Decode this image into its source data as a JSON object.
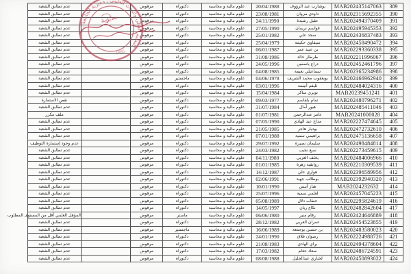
{
  "table": {
    "rows": [
      {
        "no": "389",
        "registration_id": "MAB202435147063",
        "full_name": "بوشارب عبد الرؤوف",
        "birth_date": "20/04/1988",
        "specialty": "علوم مالية و محاسبة",
        "degree": "دكتوراه",
        "decision": "مرفوض",
        "rejection_reason": "عدم تطابق الشعبة"
      },
      {
        "no": "390",
        "registration_id": "MAB202315692355",
        "full_name": "داودي مروان",
        "birth_date": "23/08/1981",
        "specialty": "علوم مالية و محاسبة",
        "degree": "دكتوراه",
        "decision": "مرفوض",
        "rejection_reason": "عدم تطابق الشعبة"
      },
      {
        "no": "391",
        "registration_id": "MAB202494370409",
        "full_name": "عقيل رشيدة",
        "birth_date": "24/11/1990",
        "specialty": "علوم مالية و محاسبة",
        "degree": "دكتوراه",
        "decision": "مرفوض",
        "rejection_reason": "عدم تطابق الشعبة"
      },
      {
        "no": "392",
        "registration_id": "MAB202495945353",
        "full_name": "قواسم نريمان",
        "birth_date": "27/05/1990",
        "specialty": "علوم مالية و محاسبة",
        "degree": "دكتوراه",
        "decision": "مرفوض",
        "rejection_reason": "عدم تطابق الشعبة"
      },
      {
        "no": "393",
        "registration_id": "MAB202436837483",
        "full_name": "سجد علي",
        "birth_date": "25/01/1982",
        "specialty": "علوم مالية و محاسبة",
        "degree": "دكتوراه",
        "decision": "مرفوض",
        "rejection_reason": "عدم تطابق الشعبة"
      },
      {
        "no": "394",
        "registration_id": "MAB202458490472",
        "full_name": "سيفاوي حكيمة",
        "birth_date": "25/04/1979",
        "specialty": "علوم مالية و محاسبة",
        "degree": "دكتوراه",
        "decision": "مرفوض",
        "rejection_reason": "عدم تطابق الشعبة"
      },
      {
        "no": "395",
        "registration_id": "MAB202293360338",
        "full_name": "بن عبيد عمر",
        "birth_date": "06/01/1987",
        "specialty": "علوم مالية و محاسبة",
        "degree": "دكتوراه",
        "decision": "مرفوض",
        "rejection_reason": "عدم تطابق الشعبة"
      },
      {
        "no": "396",
        "registration_id": "MAB202211996067",
        "full_name": "طرطار خالد",
        "birth_date": "31/08/1986",
        "specialty": "علوم مالية و محاسبة",
        "degree": "دكتوراه",
        "decision": "مرفوض",
        "rejection_reason": "عدم تطابق الشعبة"
      },
      {
        "no": "397",
        "registration_id": "MAB202452461796",
        "full_name": "دراع ياسمين",
        "birth_date": "24/05/1996",
        "specialty": "علوم مالية و محاسبة",
        "degree": "دكتوراه",
        "decision": "مرفوض",
        "rejection_reason": "عدم تطابق الشعبة"
      },
      {
        "no": "398",
        "registration_id": "MAB202365234986",
        "full_name": "سماعيلي نعيمة",
        "birth_date": "04/08/1985",
        "specialty": "علوم مالية و محاسبة",
        "degree": "دكتوراه",
        "decision": "مرفوض",
        "rejection_reason": "عدم تطابق الشعبة"
      },
      {
        "no": "399",
        "registration_id": "MAB202466962940",
        "full_name": "بويعقوب محمد الشريف",
        "birth_date": "04/06/1978",
        "specialty": "علوم مالية و محاسبة",
        "degree": "ماجستير",
        "decision": "مرفوض",
        "rejection_reason": "عدم تطابق الشعبة"
      },
      {
        "no": "400",
        "registration_id": "MAB202484024316",
        "full_name": "ثليفم أنيسة",
        "birth_date": "03/01/1996",
        "specialty": "علوم مالية و محاسبة",
        "degree": "دكتوراه",
        "decision": "مرفوض",
        "rejection_reason": "عدم تطابق الشعبة"
      },
      {
        "no": "401",
        "registration_id": "MAB20239451241",
        "full_name": "نويري ساكر",
        "birth_date": "15/04/1984",
        "specialty": "علوم مالية و محاسبة",
        "degree": "دكتوراه",
        "decision": "مرفوض",
        "rejection_reason": "عدم تطابق الشعبة"
      },
      {
        "no": "402",
        "registration_id": "MAB202480796271",
        "full_name": "تمام بلقاسم",
        "birth_date": "09/03/1977",
        "specialty": "علوم مالية و محاسبة",
        "degree": "دكتوراه",
        "decision": "مرفوض",
        "rejection_reason": "نقص الاستمارة"
      },
      {
        "no": "403",
        "registration_id": "MAB202485411046",
        "full_name": "هيور آمال",
        "birth_date": "31/07/1984",
        "specialty": "علوم مالية و محاسبة",
        "degree": "دكتوراه",
        "decision": "مرفوض",
        "rejection_reason": "عدم تطابق الشعبة"
      },
      {
        "no": "404",
        "registration_id": "MAB20241000028",
        "full_name": "عامر عبدالرحمن",
        "birth_date": "01/07/1981",
        "specialty": "علوم مالية و محاسبة",
        "degree": "دكتوراه",
        "decision": "مرفوض",
        "rejection_reason": "ملف مكرر"
      },
      {
        "no": "405",
        "registration_id": "MAB202227474645",
        "full_name": "مداح عبد الهادي",
        "birth_date": "07/05/1990",
        "specialty": "علوم مالية و محاسبة",
        "degree": "دكتوراه",
        "decision": "مرفوض",
        "rejection_reason": "عدم تطابق الشعبة"
      },
      {
        "no": "406",
        "registration_id": "MAB202472732610",
        "full_name": "بوديار هاجر",
        "birth_date": "21/05/1985",
        "specialty": "علوم مالية و محاسبة",
        "degree": "دكتوراه",
        "decision": "مرفوض",
        "rejection_reason": "عدم تطابق الشعبة"
      },
      {
        "no": "407",
        "registration_id": "MAB202475136658",
        "full_name": "براهيمي سمية",
        "birth_date": "07/01/1988",
        "specialty": "علوم مالية و محاسبة",
        "degree": "دكتوراه",
        "decision": "مرفوض",
        "rejection_reason": "عدم تطابق الشعبة"
      },
      {
        "no": "408",
        "registration_id": "MAB202498484814",
        "full_name": "سليمان نصيرة",
        "birth_date": "29/07/1992",
        "specialty": "علوم مالية و محاسبة",
        "degree": "دكتوراه",
        "decision": "مرفوض",
        "rejection_reason": "عدم وجود إستمارة التوظيف"
      },
      {
        "no": "409",
        "registration_id": "MAB202273459615",
        "full_name": "سبع نجيب",
        "birth_date": "24/03/1982",
        "specialty": "علوم مالية و محاسبة",
        "degree": "دكتوراه",
        "decision": "مرفوض",
        "rejection_reason": "عدم تطابق الشعبة"
      },
      {
        "no": "410",
        "registration_id": "MAB202484006966",
        "full_name": "يخلف العربي",
        "birth_date": "04/11/1980",
        "specialty": "علوم مالية و محاسبة",
        "degree": "دكتوراه",
        "decision": "مرفوض",
        "rejection_reason": "عدم تطابق الشعبة"
      },
      {
        "no": "411",
        "registration_id": "MAB202210309539",
        "full_name": "روابقية زهرة",
        "birth_date": "01/01/1985",
        "specialty": "علوم مالية و محاسبة",
        "degree": "دكتوراه",
        "decision": "مرفوض",
        "rejection_reason": "عدم تطابق الشعبة"
      },
      {
        "no": "412",
        "registration_id": "MAB202396589956",
        "full_name": "هواري علي",
        "birth_date": "14/12/1987",
        "specialty": "علوم مالية و محاسبة",
        "degree": "دكتوراه",
        "decision": "مرفوض",
        "rejection_reason": "عدم تطابق الشعبة"
      },
      {
        "no": "413",
        "registration_id": "MAB202392940320",
        "full_name": "بوطالب جهيد",
        "birth_date": "02/06/1991",
        "specialty": "علوم مالية و محاسبة",
        "degree": "دكتوراه",
        "decision": "مرفوض",
        "rejection_reason": "عدم تطابق الشعبة"
      },
      {
        "no": "414",
        "registration_id": "MAB2024232632",
        "full_name": "هباز أنيس",
        "birth_date": "10/01/1990",
        "specialty": "علوم مالية و محاسبة",
        "degree": "دكتوراه",
        "decision": "مرفوض",
        "rejection_reason": "عدم تطابق الشعبة"
      },
      {
        "no": "415",
        "registration_id": "MAB202457045223",
        "full_name": "لعلمي سمية",
        "birth_date": "25/07/1996",
        "specialty": "علوم مالية و محاسبة",
        "degree": "دكتوراه",
        "decision": "مرفوض",
        "rejection_reason": "عدم تطابق الشعبة"
      },
      {
        "no": "416",
        "registration_id": "MAB202295824619",
        "full_name": "حطاب دلال",
        "birth_date": "05/08/1989",
        "specialty": "علوم مالية و محاسبة",
        "degree": "دكتوراه",
        "decision": "مرفوض",
        "rejection_reason": "عدم تطابق الشعبة"
      },
      {
        "no": "417",
        "registration_id": "MAB202482842604",
        "full_name": "نكاع ريان",
        "birth_date": "14/05/1997",
        "specialty": "علوم مالية و محاسبة",
        "degree": "دكتوراه",
        "decision": "مرفوض",
        "rejection_reason": "عدم تطابق الشعبة"
      },
      {
        "no": "418",
        "registration_id": "MAB202424646889",
        "full_name": "رقام منير",
        "birth_date": "06/06/1980",
        "specialty": "علوم مالية و محاسبة",
        "degree": "ماستر",
        "decision": "مرفوض",
        "rejection_reason": "المؤهل العلمي أقل من المستوى المطلوب"
      },
      {
        "no": "419",
        "registration_id": "MAB202454523855",
        "full_name": "عمران العربي",
        "birth_date": "28/12/1982",
        "specialty": "علوم مالية و محاسبة",
        "degree": "دكتوراه",
        "decision": "مرفوض",
        "rejection_reason": "عدم تطابق الشعبة"
      },
      {
        "no": "420",
        "registration_id": "MAB202483580023",
        "full_name": "بن حسين بوجمعة",
        "birth_date": "16/06/1989",
        "specialty": "علوم مالية و محاسبة",
        "degree": "ماجستير",
        "decision": "مرفوض",
        "rejection_reason": "عدم تطابق الشعبة"
      },
      {
        "no": "421",
        "registration_id": "MAB202224988726",
        "full_name": "رضوان فلاق",
        "birth_date": "24/01/1990",
        "specialty": "علوم مالية و محاسبة",
        "degree": "دكتوراه",
        "decision": "مرفوض",
        "rejection_reason": "عدم تطابق الشعبة"
      },
      {
        "no": "422",
        "registration_id": "MAB202494378604",
        "full_name": "براي الهادي",
        "birth_date": "21/08/1983",
        "specialty": "علوم مالية و محاسبة",
        "degree": "دكتوراه",
        "decision": "مرفوض",
        "rejection_reason": "عدم تطابق الشعبة"
      },
      {
        "no": "423",
        "registration_id": "MAB202486724591",
        "full_name": "سعاد جغام",
        "birth_date": "17/03/1982",
        "specialty": "علوم مالية و محاسبة",
        "degree": "دكتوراه",
        "decision": "مرفوض",
        "rejection_reason": "عدم تطابق الشعبة"
      },
      {
        "no": "424",
        "registration_id": "MAB202450893022",
        "full_name": "لخناري عبدالجليل",
        "birth_date": "08/08/1988",
        "specialty": "علوم مالية و محاسبة",
        "degree": "دكتوراه",
        "decision": "مرفوض",
        "rejection_reason": "عدم تطابق الشعبة"
      }
    ]
  },
  "stamp": {
    "ring_text": "التعليم العالي والبحث العلمي ـ مديرية الجامعة ـ",
    "center_text": "مديرية",
    "bottom_text": "1995",
    "color": "#c2485a"
  }
}
